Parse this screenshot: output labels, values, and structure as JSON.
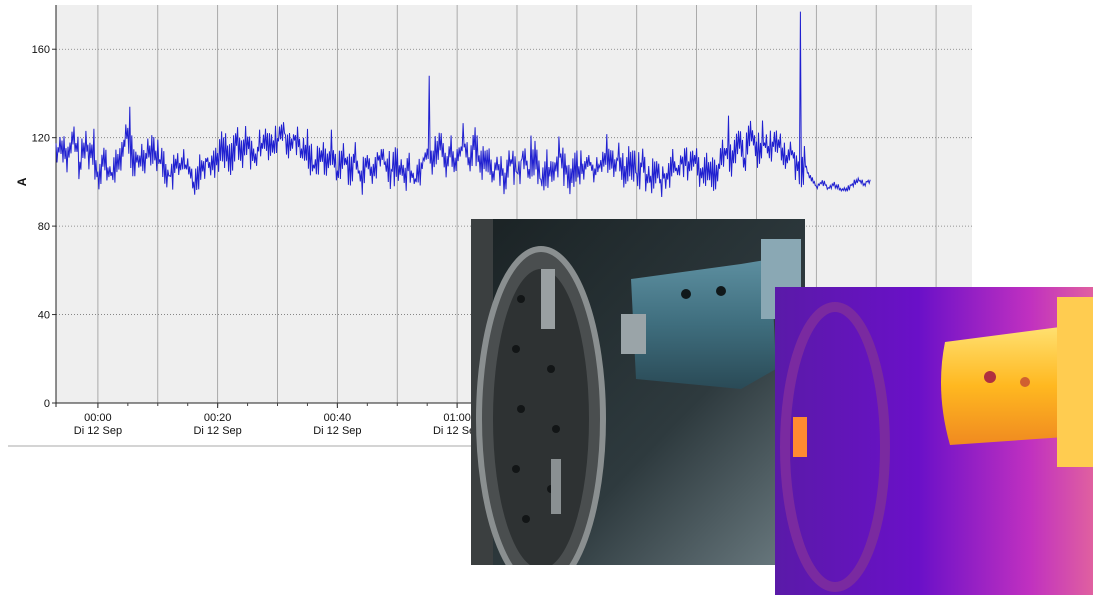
{
  "chart_data": {
    "type": "line",
    "title": "",
    "xlabel": "",
    "ylabel": "A",
    "ylim": [
      0,
      180
    ],
    "yticks": [
      0,
      40,
      80,
      120,
      160
    ],
    "xticks": [
      {
        "time": "00:00",
        "date": "Di 12 Sep"
      },
      {
        "time": "00:20",
        "date": "Di 12 Sep"
      },
      {
        "time": "00:40",
        "date": "Di 12 Sep"
      },
      {
        "time": "01:00",
        "date": "Di 12 Sep"
      }
    ],
    "x_range_minutes": [
      -7,
      146
    ],
    "grid": true,
    "line_color": "#2020d0",
    "background_color": "#efefef",
    "series": [
      {
        "points": [
          [
            -7,
            113
          ],
          [
            -6,
            118
          ],
          [
            -5,
            110
          ],
          [
            -4,
            120
          ],
          [
            -3,
            108
          ],
          [
            -2,
            117
          ],
          [
            -1,
            112
          ],
          [
            0,
            104
          ],
          [
            1,
            110
          ],
          [
            2,
            103
          ],
          [
            3,
            106
          ],
          [
            4,
            114
          ],
          [
            5,
            122
          ],
          [
            6,
            108
          ],
          [
            7,
            110
          ],
          [
            8,
            113
          ],
          [
            9,
            117
          ],
          [
            10,
            111
          ],
          [
            11,
            108
          ],
          [
            12,
            102
          ],
          [
            13,
            106
          ],
          [
            14,
            109
          ],
          [
            15,
            105
          ],
          [
            16,
            100
          ],
          [
            17,
            106
          ],
          [
            18,
            110
          ],
          [
            19,
            108
          ],
          [
            20,
            112
          ],
          [
            21,
            116
          ],
          [
            22,
            110
          ],
          [
            23,
            118
          ],
          [
            24,
            112
          ],
          [
            25,
            120
          ],
          [
            26,
            109
          ],
          [
            27,
            115
          ],
          [
            28,
            122
          ],
          [
            29,
            114
          ],
          [
            30,
            119
          ],
          [
            31,
            124
          ],
          [
            32,
            114
          ],
          [
            33,
            120
          ],
          [
            34,
            112
          ],
          [
            35,
            116
          ],
          [
            36,
            107
          ],
          [
            37,
            113
          ],
          [
            38,
            108
          ],
          [
            39,
            115
          ],
          [
            40,
            104
          ],
          [
            41,
            112
          ],
          [
            42,
            106
          ],
          [
            43,
            110
          ],
          [
            44,
            102
          ],
          [
            45,
            108
          ],
          [
            46,
            103
          ],
          [
            47,
            112
          ],
          [
            48,
            108
          ],
          [
            49,
            104
          ],
          [
            50,
            110
          ],
          [
            51,
            102
          ],
          [
            52,
            107
          ],
          [
            53,
            101
          ],
          [
            54,
            108
          ],
          [
            55,
            114
          ],
          [
            56,
            110
          ],
          [
            57,
            118
          ],
          [
            58,
            109
          ],
          [
            59,
            114
          ],
          [
            60,
            108
          ],
          [
            61,
            120
          ],
          [
            62,
            111
          ],
          [
            63,
            116
          ],
          [
            64,
            106
          ],
          [
            65,
            113
          ],
          [
            66,
            104
          ],
          [
            67,
            108
          ],
          [
            68,
            102
          ],
          [
            69,
            109
          ],
          [
            70,
            104
          ],
          [
            71,
            112
          ],
          [
            72,
            105
          ],
          [
            73,
            110
          ],
          [
            74,
            100
          ],
          [
            75,
            106
          ],
          [
            76,
            102
          ],
          [
            77,
            112
          ],
          [
            78,
            106
          ],
          [
            79,
            101
          ],
          [
            80,
            108
          ],
          [
            81,
            104
          ],
          [
            82,
            110
          ],
          [
            83,
            103
          ],
          [
            84,
            109
          ],
          [
            85,
            114
          ],
          [
            86,
            106
          ],
          [
            87,
            112
          ],
          [
            88,
            104
          ],
          [
            89,
            110
          ],
          [
            90,
            103
          ],
          [
            91,
            108
          ],
          [
            92,
            100
          ],
          [
            93,
            105
          ],
          [
            94,
            100
          ],
          [
            95,
            103
          ],
          [
            96,
            108
          ],
          [
            97,
            104
          ],
          [
            98,
            112
          ],
          [
            99,
            105
          ],
          [
            100,
            110
          ],
          [
            101,
            102
          ],
          [
            102,
            108
          ],
          [
            103,
            104
          ],
          [
            104,
            110
          ],
          [
            105,
            114
          ],
          [
            106,
            108
          ],
          [
            107,
            118
          ],
          [
            108,
            110
          ],
          [
            109,
            122
          ],
          [
            110,
            114
          ],
          [
            111,
            119
          ],
          [
            112,
            112
          ],
          [
            113,
            120
          ],
          [
            114,
            115
          ],
          [
            115,
            110
          ],
          [
            116,
            114
          ],
          [
            117,
            105
          ],
          [
            118,
            108
          ],
          [
            119,
            102
          ],
          [
            120,
            98
          ],
          [
            121,
            100
          ],
          [
            122,
            97
          ],
          [
            123,
            99
          ],
          [
            124,
            97
          ],
          [
            125,
            96
          ],
          [
            126,
            99
          ],
          [
            127,
            101
          ],
          [
            128,
            99
          ],
          [
            129,
            101
          ]
        ],
        "spikes": [
          [
            -1,
            124
          ],
          [
            5,
            134
          ],
          [
            13,
            113
          ],
          [
            55,
            148
          ],
          [
            72,
            121
          ],
          [
            105,
            130
          ],
          [
            117,
            177
          ]
        ]
      }
    ]
  }
}
